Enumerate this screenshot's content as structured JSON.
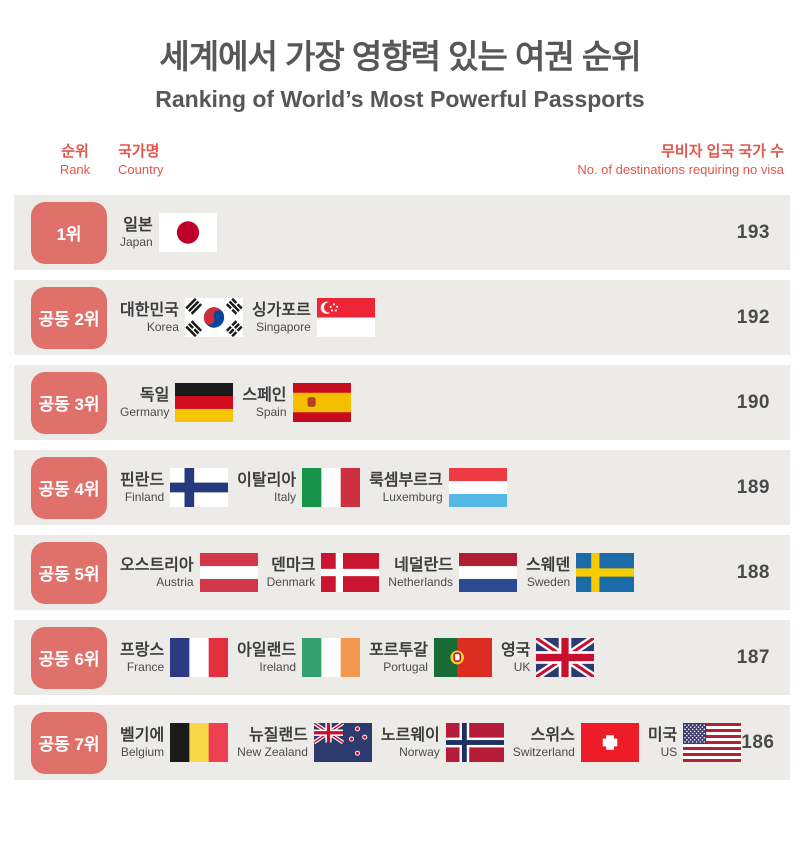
{
  "title": "세계에서 가장 영향력 있는 여권 순위",
  "subtitle": "Ranking of World’s Most Powerful Passports",
  "columns": {
    "rank_ko": "순위",
    "rank_en": "Rank",
    "country_ko": "국가명",
    "country_en": "Country",
    "count_ko": "무비자 입국 국가 수",
    "count_en": "No. of destinations requiring no visa"
  },
  "colors": {
    "accent_badge": "#e0716a",
    "header_red": "#e2564b",
    "row_background": "#edebe7",
    "title_gray": "#57575a",
    "text_dark": "#3d3d3f"
  },
  "chart_data": {
    "type": "table",
    "title": "세계에서 가장 영향력 있는 여권 순위 / Ranking of World’s Most Powerful Passports",
    "columns": [
      "순위 Rank",
      "국가명 Country",
      "무비자 입국 국가 수 No. of destinations requiring no visa"
    ],
    "rows": [
      {
        "rank": "1위",
        "countries": [
          "일본 Japan"
        ],
        "visa_free_destinations": 193
      },
      {
        "rank": "공동 2위",
        "countries": [
          "대한민국 Korea",
          "싱가포르 Singapore"
        ],
        "visa_free_destinations": 192
      },
      {
        "rank": "공동 3위",
        "countries": [
          "독일 Germany",
          "스페인 Spain"
        ],
        "visa_free_destinations": 190
      },
      {
        "rank": "공동 4위",
        "countries": [
          "핀란드 Finland",
          "이탈리아 Italy",
          "룩셈부르크 Luxemburg"
        ],
        "visa_free_destinations": 189
      },
      {
        "rank": "공동 5위",
        "countries": [
          "오스트리아 Austria",
          "덴마크 Denmark",
          "네덜란드 Netherlands",
          "스웨덴 Sweden"
        ],
        "visa_free_destinations": 188
      },
      {
        "rank": "공동 6위",
        "countries": [
          "프랑스 France",
          "아일랜드 Ireland",
          "포르투갈 Portugal",
          "영국 UK"
        ],
        "visa_free_destinations": 187
      },
      {
        "rank": "공동 7위",
        "countries": [
          "벨기에 Belgium",
          "뉴질랜드 New Zealand",
          "노르웨이 Norway",
          "스위스 Switzerland",
          "미국 US"
        ],
        "visa_free_destinations": 186
      }
    ]
  },
  "rows": [
    {
      "rank": "1위",
      "count": "193",
      "countries": [
        {
          "name_ko": "일본",
          "name_en": "Japan",
          "flag": "japan"
        }
      ]
    },
    {
      "rank": "공동 2위",
      "count": "192",
      "countries": [
        {
          "name_ko": "대한민국",
          "name_en": "Korea",
          "flag": "south-korea"
        },
        {
          "name_ko": "싱가포르",
          "name_en": "Singapore",
          "flag": "singapore"
        }
      ]
    },
    {
      "rank": "공동 3위",
      "count": "190",
      "countries": [
        {
          "name_ko": "독일",
          "name_en": "Germany",
          "flag": "germany"
        },
        {
          "name_ko": "스페인",
          "name_en": "Spain",
          "flag": "spain"
        }
      ]
    },
    {
      "rank": "공동 4위",
      "count": "189",
      "countries": [
        {
          "name_ko": "핀란드",
          "name_en": "Finland",
          "flag": "finland"
        },
        {
          "name_ko": "이탈리아",
          "name_en": "Italy",
          "flag": "italy"
        },
        {
          "name_ko": "룩셈부르크",
          "name_en": "Luxemburg",
          "flag": "luxembourg"
        }
      ]
    },
    {
      "rank": "공동 5위",
      "count": "188",
      "countries": [
        {
          "name_ko": "오스트리아",
          "name_en": "Austria",
          "flag": "austria"
        },
        {
          "name_ko": "덴마크",
          "name_en": "Denmark",
          "flag": "denmark"
        },
        {
          "name_ko": "네덜란드",
          "name_en": "Netherlands",
          "flag": "netherlands"
        },
        {
          "name_ko": "스웨덴",
          "name_en": "Sweden",
          "flag": "sweden"
        }
      ]
    },
    {
      "rank": "공동 6위",
      "count": "187",
      "countries": [
        {
          "name_ko": "프랑스",
          "name_en": "France",
          "flag": "france"
        },
        {
          "name_ko": "아일랜드",
          "name_en": "Ireland",
          "flag": "ireland"
        },
        {
          "name_ko": "포르투갈",
          "name_en": "Portugal",
          "flag": "portugal"
        },
        {
          "name_ko": "영국",
          "name_en": "UK",
          "flag": "united-kingdom"
        }
      ]
    },
    {
      "rank": "공동 7위",
      "count": "186",
      "countries": [
        {
          "name_ko": "벨기에",
          "name_en": "Belgium",
          "flag": "belgium"
        },
        {
          "name_ko": "뉴질랜드",
          "name_en": "New Zealand",
          "flag": "new-zealand"
        },
        {
          "name_ko": "노르웨이",
          "name_en": "Norway",
          "flag": "norway"
        },
        {
          "name_ko": "스위스",
          "name_en": "Switzerland",
          "flag": "switzerland"
        },
        {
          "name_ko": "미국",
          "name_en": "US",
          "flag": "united-states"
        }
      ]
    }
  ]
}
